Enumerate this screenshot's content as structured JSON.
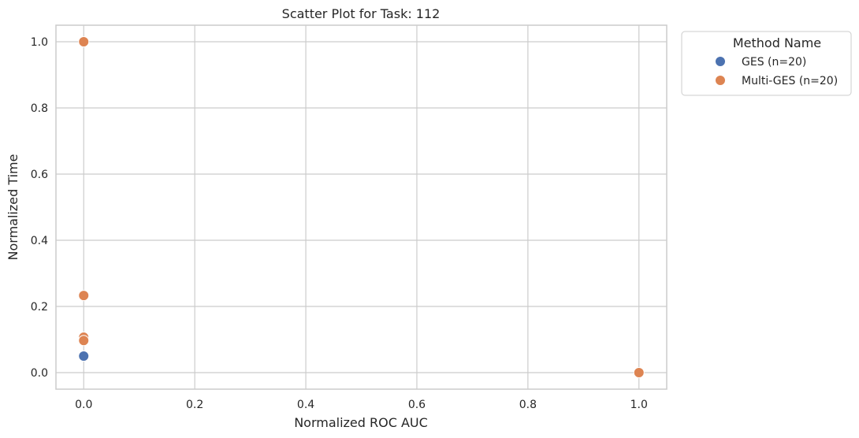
{
  "chart_data": {
    "type": "scatter",
    "title": "Scatter Plot for Task: 112",
    "xlabel": "Normalized ROC AUC",
    "ylabel": "Normalized Time",
    "xlim": [
      -0.05,
      1.05
    ],
    "ylim": [
      -0.05,
      1.05
    ],
    "xticks": [
      0.0,
      0.2,
      0.4,
      0.6,
      0.8,
      1.0
    ],
    "yticks": [
      0.0,
      0.2,
      0.4,
      0.6,
      0.8,
      1.0
    ],
    "xtick_labels": [
      "0.0",
      "0.2",
      "0.4",
      "0.6",
      "0.8",
      "1.0"
    ],
    "ytick_labels": [
      "0.0",
      "0.2",
      "0.4",
      "0.6",
      "0.8",
      "1.0"
    ],
    "grid": true,
    "legend": {
      "title": "Method Name",
      "placement": "outside-upper-right"
    },
    "series": [
      {
        "name": "GES (n=20)",
        "color": "#4c72b0",
        "points": [
          {
            "x": 0.0,
            "y": 0.05
          }
        ]
      },
      {
        "name": "Multi-GES (n=20)",
        "color": "#dd8452",
        "points": [
          {
            "x": 0.0,
            "y": 1.0
          },
          {
            "x": 0.0,
            "y": 0.233
          },
          {
            "x": 0.0,
            "y": 0.107
          },
          {
            "x": 0.0,
            "y": 0.097
          },
          {
            "x": 1.0,
            "y": 0.0
          }
        ]
      }
    ]
  }
}
